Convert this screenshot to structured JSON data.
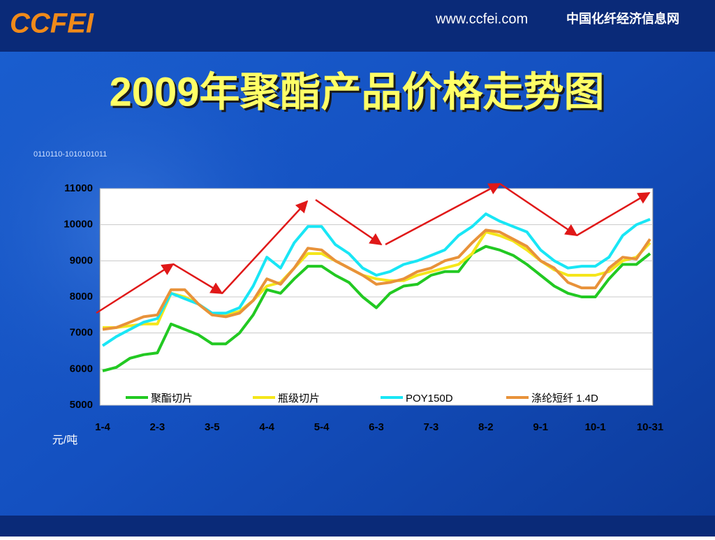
{
  "header": {
    "logo": "CCFEI",
    "url": "www.ccfei.com",
    "site_name": "中国化纤经济信息网",
    "decor": "0110110-1010101011"
  },
  "chart_data": {
    "type": "line",
    "title": "2009年聚酯产品价格走势图",
    "y_unit": "元/吨",
    "categories": [
      "1-4",
      null,
      null,
      null,
      "2-3",
      null,
      null,
      null,
      "3-5",
      null,
      null,
      null,
      "4-4",
      null,
      null,
      null,
      "5-4",
      null,
      null,
      null,
      "6-3",
      null,
      null,
      null,
      "7-3",
      null,
      null,
      null,
      "8-2",
      null,
      null,
      null,
      "9-1",
      null,
      null,
      null,
      "10-1",
      null,
      null,
      null,
      "10-31"
    ],
    "ylim": [
      5000,
      11000
    ],
    "yticks": [
      5000,
      6000,
      7000,
      8000,
      9000,
      10000,
      11000
    ],
    "grid": true,
    "series": [
      {
        "name": "聚酯切片",
        "color": "#22c922",
        "values": [
          5950,
          6050,
          6300,
          6400,
          6450,
          7250,
          7100,
          6950,
          6700,
          6700,
          7000,
          7500,
          8200,
          8100,
          8500,
          8850,
          8850,
          8600,
          8400,
          8000,
          7700,
          8100,
          8300,
          8350,
          8600,
          8700,
          8700,
          9200,
          9400,
          9300,
          9150,
          8900,
          8600,
          8300,
          8100,
          8000,
          8000,
          8500,
          8900,
          8900,
          9200
        ]
      },
      {
        "name": "瓶级切片",
        "color": "#f5e61a",
        "values": [
          7150,
          7150,
          7200,
          7250,
          7250,
          8100,
          8000,
          7800,
          7500,
          7500,
          7600,
          7900,
          8300,
          8400,
          8800,
          9200,
          9200,
          9000,
          8800,
          8600,
          8500,
          8450,
          8450,
          8600,
          8700,
          8800,
          8900,
          9200,
          9800,
          9700,
          9550,
          9300,
          9000,
          8750,
          8600,
          8600,
          8600,
          8700,
          9000,
          9100,
          9500
        ]
      },
      {
        "name": "POY150D",
        "color": "#19e6f5",
        "values": [
          6650,
          6900,
          7100,
          7300,
          7400,
          8100,
          7950,
          7800,
          7550,
          7550,
          7700,
          8300,
          9100,
          8800,
          9500,
          9950,
          9950,
          9450,
          9200,
          8800,
          8600,
          8700,
          8900,
          9000,
          9150,
          9300,
          9700,
          9950,
          10300,
          10100,
          9950,
          9800,
          9300,
          9000,
          8800,
          8850,
          8850,
          9100,
          9700,
          10000,
          10150
        ]
      },
      {
        "name": "涤纶短纤 1.4D",
        "color": "#e8923a",
        "values": [
          7100,
          7150,
          7300,
          7450,
          7500,
          8200,
          8200,
          7800,
          7500,
          7450,
          7550,
          7900,
          8500,
          8350,
          8800,
          9350,
          9300,
          9000,
          8800,
          8600,
          8350,
          8400,
          8500,
          8700,
          8800,
          9000,
          9100,
          9500,
          9850,
          9800,
          9600,
          9400,
          9000,
          8800,
          8400,
          8250,
          8250,
          8800,
          9100,
          9050,
          9600
        ]
      }
    ]
  }
}
